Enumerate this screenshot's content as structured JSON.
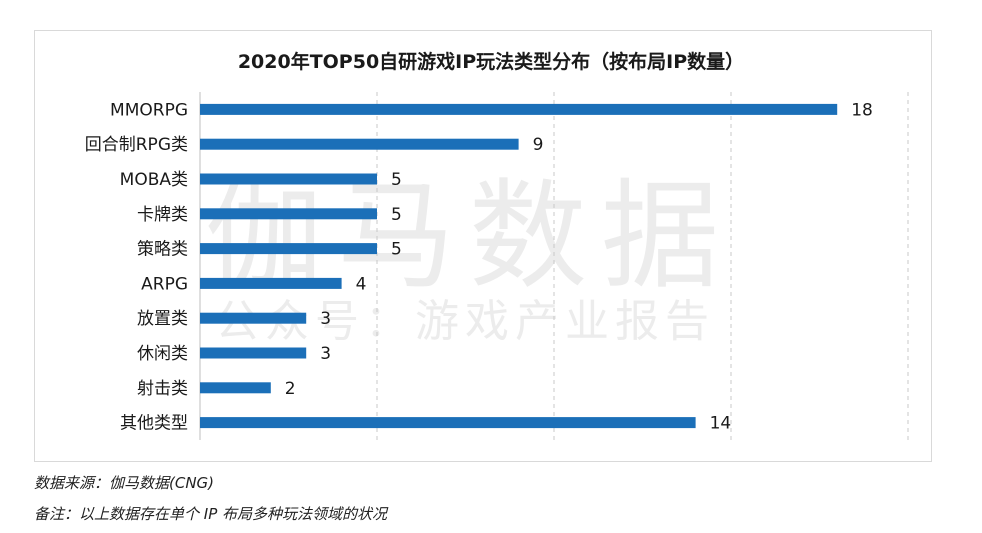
{
  "chart_data": {
    "type": "bar",
    "orientation": "horizontal",
    "title": "2020年TOP50自研游戏IP玩法类型分布（按布局IP数量）",
    "categories": [
      "MMORPG",
      "回合制RPG类",
      "MOBA类",
      "卡牌类",
      "策略类",
      "ARPG",
      "放置类",
      "休闲类",
      "射击类",
      "其他类型"
    ],
    "values": [
      18,
      9,
      5,
      5,
      5,
      4,
      3,
      3,
      2,
      14
    ],
    "xlim": [
      0,
      20
    ],
    "grid": "vertical-dashed",
    "bar_color": "#1b6fb8"
  },
  "watermark": {
    "main": "伽马数据",
    "sub": "公众号：游戏产业报告"
  },
  "notes": {
    "source": "数据来源：伽马数据(CNG)",
    "remark": "备注：以上数据存在单个 IP 布局多种玩法领域的状况"
  }
}
